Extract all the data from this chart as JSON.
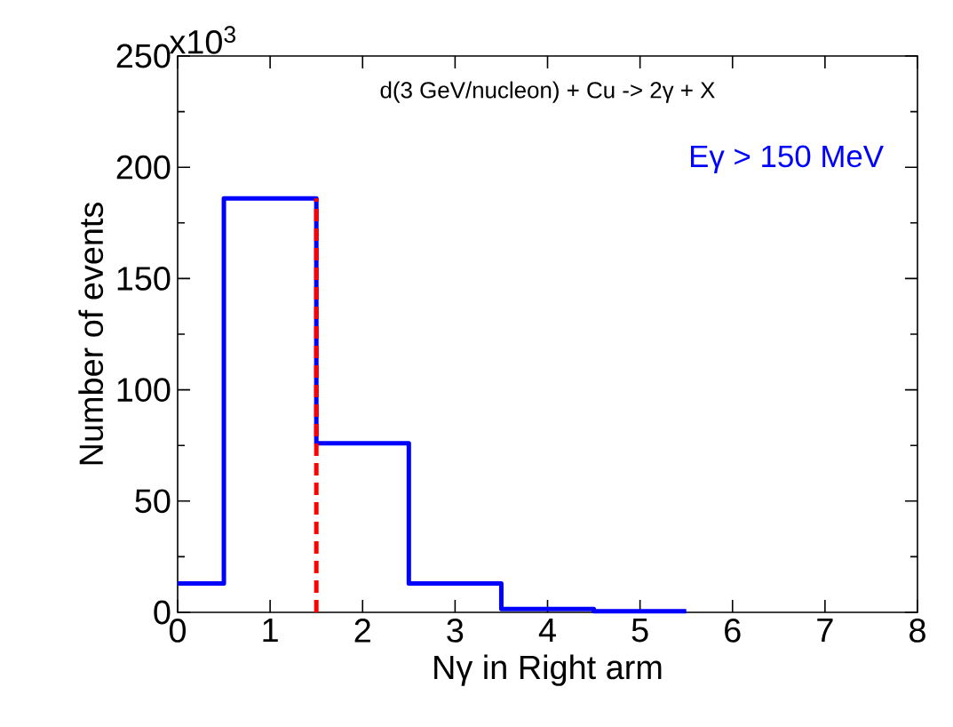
{
  "chart_data": {
    "type": "histogram",
    "xlabel": "Nγ in Right arm",
    "ylabel": "Number of events",
    "annotations": [
      "x10$^{3}$",
      "d(3 GeV/nucleon) + Cu -> 2γ + X",
      "Eγ > 150 MeV"
    ],
    "bins": [
      0,
      0.5,
      1.5,
      2.5,
      3.5,
      4.5,
      5.5
    ],
    "values": [
      13,
      186,
      76,
      13,
      1.5,
      0.5
    ],
    "color": "#0000ff",
    "xlim": [
      0,
      8
    ],
    "xticks": [
      0,
      1,
      2,
      3,
      4,
      5,
      6,
      7,
      8
    ],
    "ylim": [
      0,
      250
    ],
    "yticks": [
      0,
      50,
      100,
      150,
      200,
      250
    ],
    "ref_lines": [
      {
        "axis": "x",
        "value": 1.5,
        "color": "#ff0000",
        "line_style": "dashed"
      }
    ]
  }
}
